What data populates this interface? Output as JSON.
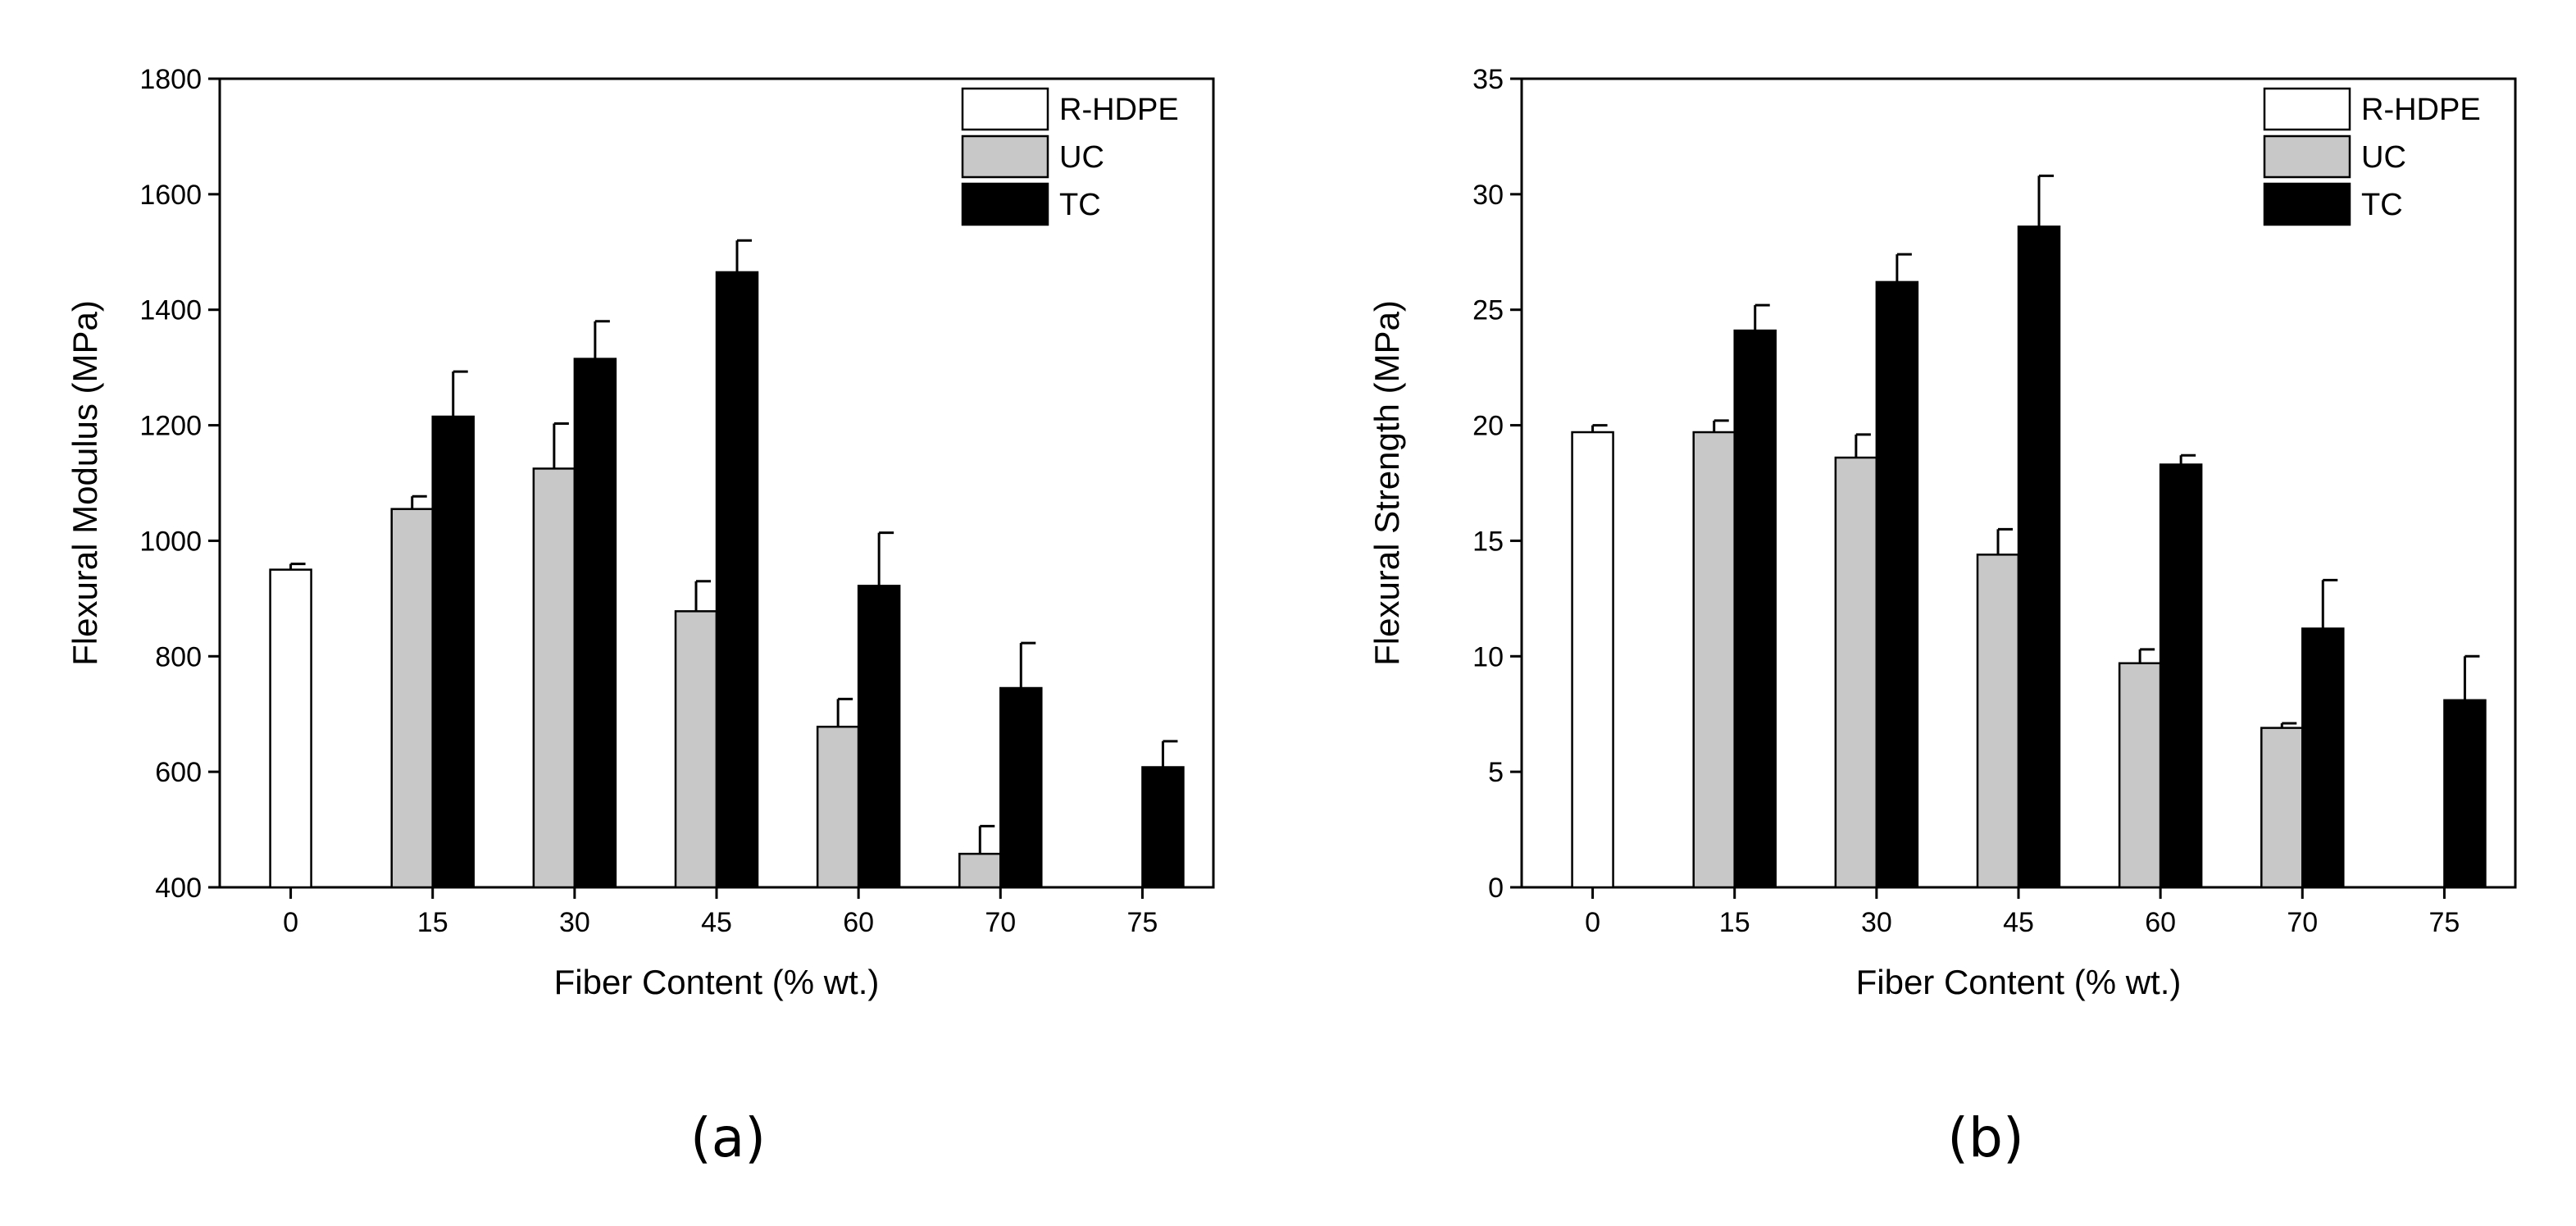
{
  "chart_data": [
    {
      "type": "bar",
      "panel_label": "(a)",
      "xlabel": "Fiber Content (% wt.)",
      "ylabel": "Flexural Modulus (MPa)",
      "ylim": [
        400,
        1800
      ],
      "yticks": [
        400,
        600,
        800,
        1000,
        1200,
        1400,
        1600,
        1800
      ],
      "categories": [
        "0",
        "15",
        "30",
        "45",
        "60",
        "70",
        "75"
      ],
      "series": [
        {
          "name": "R-HDPE",
          "color": "#ffffff",
          "values": [
            950,
            null,
            null,
            null,
            null,
            null,
            null
          ],
          "errors": [
            10,
            null,
            null,
            null,
            null,
            null,
            null
          ]
        },
        {
          "name": "UC",
          "color": "#c8c8c8",
          "values": [
            null,
            1055,
            1125,
            878,
            678,
            458,
            null
          ],
          "errors": [
            null,
            22,
            78,
            52,
            48,
            48,
            null
          ]
        },
        {
          "name": "TC",
          "color": "#000000",
          "values": [
            null,
            1215,
            1315,
            1465,
            922,
            745,
            608
          ],
          "errors": [
            null,
            78,
            65,
            55,
            92,
            78,
            45
          ]
        }
      ],
      "legend_position": "top-right"
    },
    {
      "type": "bar",
      "panel_label": "(b)",
      "xlabel": "Fiber Content (% wt.)",
      "ylabel": "Flexural Strength (MPa)",
      "ylim": [
        0,
        35
      ],
      "yticks": [
        0,
        5,
        10,
        15,
        20,
        25,
        30,
        35
      ],
      "categories": [
        "0",
        "15",
        "30",
        "45",
        "60",
        "70",
        "75"
      ],
      "series": [
        {
          "name": "R-HDPE",
          "color": "#ffffff",
          "values": [
            19.7,
            null,
            null,
            null,
            null,
            null,
            null
          ],
          "errors": [
            0.3,
            null,
            null,
            null,
            null,
            null,
            null
          ]
        },
        {
          "name": "UC",
          "color": "#c8c8c8",
          "values": [
            null,
            19.7,
            18.6,
            14.4,
            9.7,
            6.9,
            null
          ],
          "errors": [
            null,
            0.5,
            1.0,
            1.1,
            0.6,
            0.2,
            null
          ]
        },
        {
          "name": "TC",
          "color": "#000000",
          "values": [
            null,
            24.1,
            26.2,
            28.6,
            18.3,
            11.2,
            8.1
          ],
          "errors": [
            null,
            1.1,
            1.2,
            2.2,
            0.4,
            2.1,
            1.9
          ]
        }
      ],
      "legend_position": "top-right"
    }
  ]
}
